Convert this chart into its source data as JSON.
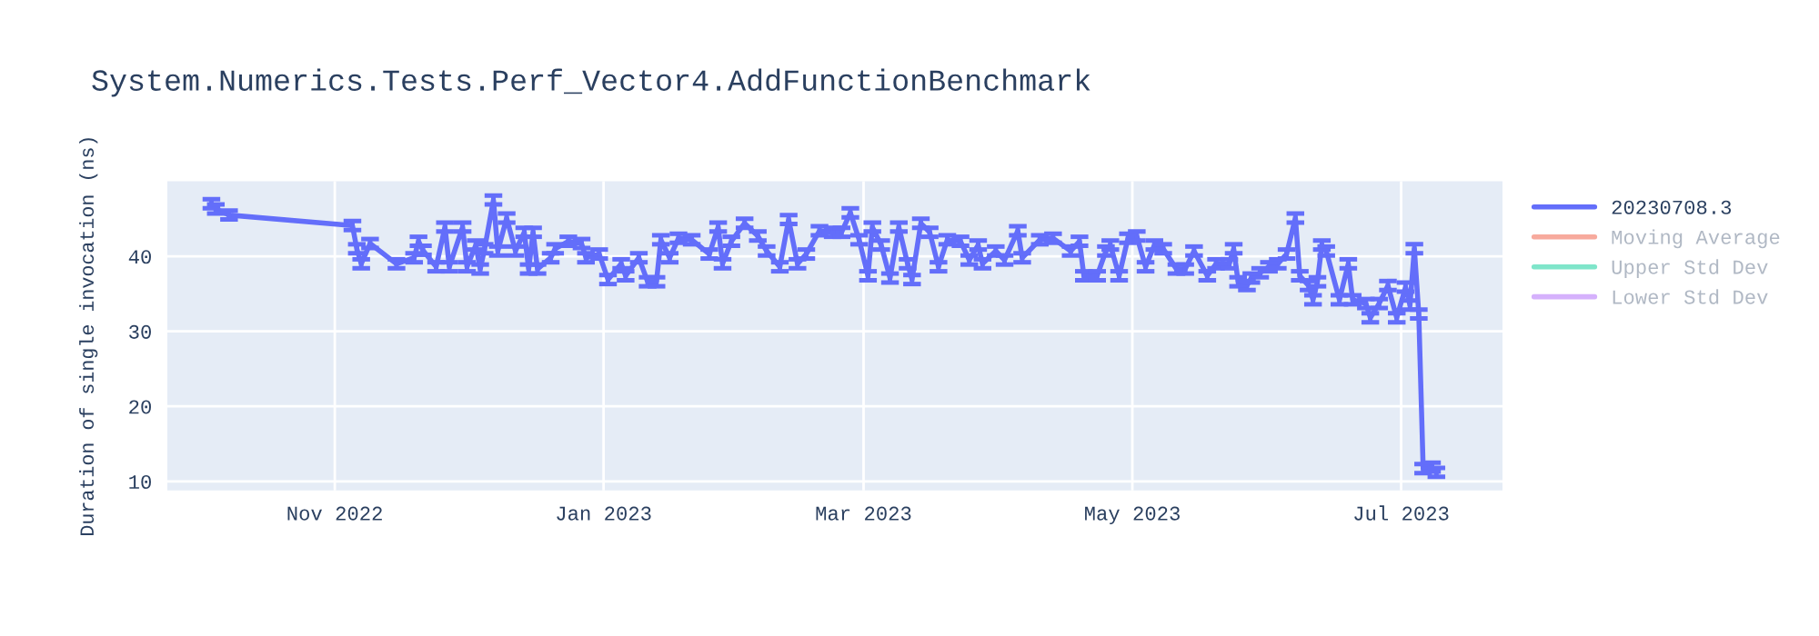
{
  "chart_data": {
    "type": "line",
    "title": "System.Numerics.Tests.Perf_Vector4.AddFunctionBenchmark",
    "ylabel": "Duration of single invocation (ns)",
    "x": [
      "2022-10-04",
      "2022-10-05",
      "2022-10-08",
      "2022-11-05",
      "2022-11-06",
      "2022-11-07",
      "2022-11-09",
      "2022-11-15",
      "2022-11-19",
      "2022-11-20",
      "2022-11-21",
      "2022-11-24",
      "2022-11-26",
      "2022-11-27",
      "2022-11-30",
      "2022-12-01",
      "2022-12-03",
      "2022-12-04",
      "2022-12-05",
      "2022-12-07",
      "2022-12-08",
      "2022-12-10",
      "2022-12-12",
      "2022-12-14",
      "2022-12-15",
      "2022-12-16",
      "2022-12-17",
      "2022-12-20",
      "2022-12-21",
      "2022-12-24",
      "2022-12-27",
      "2022-12-28",
      "2022-12-31",
      "2023-01-02",
      "2023-01-05",
      "2023-01-06",
      "2023-01-09",
      "2023-01-11",
      "2023-01-13",
      "2023-01-14",
      "2023-01-16",
      "2023-01-18",
      "2023-01-21",
      "2023-01-25",
      "2023-01-27",
      "2023-01-28",
      "2023-01-30",
      "2023-02-02",
      "2023-02-05",
      "2023-02-07",
      "2023-02-10",
      "2023-02-12",
      "2023-02-14",
      "2023-02-16",
      "2023-02-19",
      "2023-02-22",
      "2023-02-24",
      "2023-02-26",
      "2023-02-28",
      "2023-03-02",
      "2023-03-03",
      "2023-03-05",
      "2023-03-07",
      "2023-03-09",
      "2023-03-11",
      "2023-03-12",
      "2023-03-14",
      "2023-03-16",
      "2023-03-18",
      "2023-03-20",
      "2023-03-23",
      "2023-03-25",
      "2023-03-27",
      "2023-03-28",
      "2023-03-31",
      "2023-04-02",
      "2023-04-05",
      "2023-04-06",
      "2023-04-10",
      "2023-04-13",
      "2023-04-17",
      "2023-04-19",
      "2023-04-20",
      "2023-04-23",
      "2023-04-25",
      "2023-04-26",
      "2023-04-28",
      "2023-04-30",
      "2023-05-02",
      "2023-05-04",
      "2023-05-06",
      "2023-05-08",
      "2023-05-11",
      "2023-05-13",
      "2023-05-15",
      "2023-05-18",
      "2023-05-20",
      "2023-05-23",
      "2023-05-24",
      "2023-05-25",
      "2023-05-27",
      "2023-05-28",
      "2023-05-30",
      "2023-06-01",
      "2023-06-03",
      "2023-06-05",
      "2023-06-07",
      "2023-06-08",
      "2023-06-10",
      "2023-06-11",
      "2023-06-12",
      "2023-06-13",
      "2023-06-14",
      "2023-06-17",
      "2023-06-19",
      "2023-06-20",
      "2023-06-23",
      "2023-06-24",
      "2023-06-26",
      "2023-06-28",
      "2023-06-30",
      "2023-07-02",
      "2023-07-03",
      "2023-07-04",
      "2023-07-05",
      "2023-07-06",
      "2023-07-08",
      "2023-07-09"
    ],
    "series": [
      {
        "name": "20230708.3",
        "color": "#636efa",
        "values": [
          47,
          46.3,
          45.5,
          44.1,
          41,
          39,
          41.7,
          39,
          39.8,
          42,
          40.8,
          38.6,
          43.9,
          38.6,
          43.9,
          38.6,
          41.5,
          38.3,
          41,
          47.5,
          40.7,
          45.1,
          40.7,
          43.2,
          38.3,
          43.2,
          38.3,
          39.8,
          41,
          42,
          41.7,
          39.8,
          40.3,
          36.9,
          39,
          37.4,
          39.8,
          36.6,
          36.6,
          42.2,
          39.8,
          42.4,
          42.2,
          40.3,
          43.9,
          39,
          42,
          44.4,
          42.7,
          40.7,
          38.6,
          44.9,
          39,
          40.3,
          43.4,
          43.2,
          43.2,
          45.8,
          42.2,
          37.4,
          43.9,
          41.5,
          37.1,
          43.9,
          39,
          36.9,
          44.4,
          43.2,
          38.6,
          42.2,
          42,
          39.5,
          41.5,
          39,
          40.7,
          39.5,
          43.4,
          39.8,
          42.2,
          42.4,
          40.7,
          42,
          37.4,
          37.4,
          40.7,
          41.5,
          37.4,
          42.4,
          42.7,
          38.6,
          41.5,
          41,
          38.3,
          38.3,
          40.7,
          37.4,
          39,
          39,
          41,
          36.6,
          36.1,
          37.1,
          37.8,
          38.6,
          39,
          40.3,
          45.1,
          37.4,
          36.1,
          34.2,
          36.6,
          41.5,
          40.7,
          34.2,
          39,
          34.2,
          33.7,
          31.8,
          33.7,
          36.1,
          31.8,
          35.9,
          33.5,
          41,
          32.3,
          11.7,
          11.9,
          11.2
        ],
        "errors": [
          0.6,
          0.6,
          0.6,
          0.6,
          0.6,
          0.6,
          0.6,
          0.6,
          0.6,
          0.6,
          0.6,
          0.6,
          0.6,
          0.6,
          0.6,
          0.6,
          0.6,
          0.6,
          0.6,
          0.6,
          0.6,
          0.6,
          0.6,
          0.6,
          0.6,
          0.6,
          0.6,
          0.6,
          0.6,
          0.6,
          0.6,
          0.6,
          0.6,
          0.6,
          0.6,
          0.6,
          0.6,
          0.6,
          0.6,
          0.6,
          0.6,
          0.6,
          0.6,
          0.6,
          0.6,
          0.6,
          0.6,
          0.6,
          0.6,
          0.6,
          0.6,
          0.6,
          0.6,
          0.6,
          0.6,
          0.6,
          0.6,
          0.6,
          0.6,
          0.6,
          0.6,
          0.6,
          0.6,
          0.6,
          0.6,
          0.6,
          0.6,
          0.6,
          0.6,
          0.6,
          0.6,
          0.6,
          0.6,
          0.6,
          0.6,
          0.6,
          0.6,
          0.6,
          0.6,
          0.6,
          0.6,
          0.6,
          0.6,
          0.6,
          0.6,
          0.6,
          0.6,
          0.6,
          0.6,
          0.6,
          0.6,
          0.6,
          0.6,
          0.6,
          0.6,
          0.6,
          0.6,
          0.6,
          0.6,
          0.6,
          0.6,
          0.6,
          0.6,
          0.6,
          0.6,
          0.6,
          0.6,
          0.6,
          0.6,
          0.6,
          0.6,
          0.6,
          0.6,
          0.6,
          0.6,
          0.6,
          0.6,
          0.6,
          0.6,
          0.6,
          0.6,
          0.6,
          0.6,
          0.6,
          0.6,
          0.6,
          0.6,
          0.6
        ]
      },
      {
        "name": "Moving Average",
        "color": "#ef553b",
        "values": [
          null,
          null,
          null,
          null,
          null,
          null,
          null,
          null,
          null,
          null,
          null,
          null,
          null,
          null,
          null,
          null,
          null,
          null,
          null,
          null,
          null,
          null,
          null,
          null,
          null,
          null,
          null,
          null,
          null,
          null,
          null,
          null,
          null,
          null,
          null,
          null,
          null,
          null,
          null,
          null,
          null,
          null,
          null,
          null,
          null,
          null,
          null,
          null,
          null,
          null,
          null,
          null,
          null,
          null,
          null,
          null,
          null,
          null,
          null,
          null,
          null,
          null,
          null,
          null,
          null,
          null,
          null,
          null,
          null,
          null,
          null,
          null,
          null,
          null,
          null,
          null,
          null,
          null,
          null,
          null,
          null,
          null,
          null,
          null,
          null,
          null,
          null,
          null,
          null,
          null,
          null,
          null,
          null,
          null,
          null,
          null,
          null,
          null,
          null,
          null,
          null,
          null,
          null,
          null,
          null,
          null,
          null,
          null,
          null,
          null,
          null,
          null,
          null,
          null,
          null,
          null,
          null,
          null,
          null,
          null,
          null,
          null,
          null,
          null,
          null,
          null,
          null,
          null
        ]
      },
      {
        "name": "Upper Std Dev",
        "color": "#00cc96",
        "values": [
          null,
          null,
          null,
          null,
          null,
          null,
          null,
          null,
          null,
          null,
          null,
          null,
          null,
          null,
          null,
          null,
          null,
          null,
          null,
          null,
          null,
          null,
          null,
          null,
          null,
          null,
          null,
          null,
          null,
          null,
          null,
          null,
          null,
          null,
          null,
          null,
          null,
          null,
          null,
          null,
          null,
          null,
          null,
          null,
          null,
          null,
          null,
          null,
          null,
          null,
          null,
          null,
          null,
          null,
          null,
          null,
          null,
          null,
          null,
          null,
          null,
          null,
          null,
          null,
          null,
          null,
          null,
          null,
          null,
          null,
          null,
          null,
          null,
          null,
          null,
          null,
          null,
          null,
          null,
          null,
          null,
          null,
          null,
          null,
          null,
          null,
          null,
          null,
          null,
          null,
          null,
          null,
          null,
          null,
          null,
          null,
          null,
          null,
          null,
          null,
          null,
          null,
          null,
          null,
          null,
          null,
          null,
          null,
          null,
          null,
          null,
          null,
          null,
          null,
          null,
          null,
          null,
          null,
          null,
          null,
          null,
          null,
          null,
          null,
          null,
          null,
          null,
          null
        ]
      },
      {
        "name": "Lower Std Dev",
        "color": "#ab63fa",
        "values": [
          null,
          null,
          null,
          null,
          null,
          null,
          null,
          null,
          null,
          null,
          null,
          null,
          null,
          null,
          null,
          null,
          null,
          null,
          null,
          null,
          null,
          null,
          null,
          null,
          null,
          null,
          null,
          null,
          null,
          null,
          null,
          null,
          null,
          null,
          null,
          null,
          null,
          null,
          null,
          null,
          null,
          null,
          null,
          null,
          null,
          null,
          null,
          null,
          null,
          null,
          null,
          null,
          null,
          null,
          null,
          null,
          null,
          null,
          null,
          null,
          null,
          null,
          null,
          null,
          null,
          null,
          null,
          null,
          null,
          null,
          null,
          null,
          null,
          null,
          null,
          null,
          null,
          null,
          null,
          null,
          null,
          null,
          null,
          null,
          null,
          null,
          null,
          null,
          null,
          null,
          null,
          null,
          null,
          null,
          null,
          null,
          null,
          null,
          null,
          null,
          null,
          null,
          null,
          null,
          null,
          null,
          null,
          null,
          null,
          null,
          null,
          null,
          null,
          null,
          null,
          null,
          null,
          null,
          null,
          null,
          null,
          null,
          null,
          null,
          null,
          null,
          null,
          null
        ]
      }
    ],
    "xlim": [
      "2022-09-24",
      "2023-07-24"
    ],
    "xticks": [
      {
        "value": "2022-11-01",
        "label": "Nov 2022"
      },
      {
        "value": "2023-01-01",
        "label": "Jan 2023"
      },
      {
        "value": "2023-03-01",
        "label": "Mar 2023"
      },
      {
        "value": "2023-05-01",
        "label": "May 2023"
      },
      {
        "value": "2023-07-01",
        "label": "Jul 2023"
      }
    ],
    "ylim": [
      8.8,
      50
    ],
    "yticks": [
      10,
      20,
      30,
      40
    ],
    "grid": true,
    "legend": "top right",
    "marker": "none",
    "line_style": "solid"
  }
}
